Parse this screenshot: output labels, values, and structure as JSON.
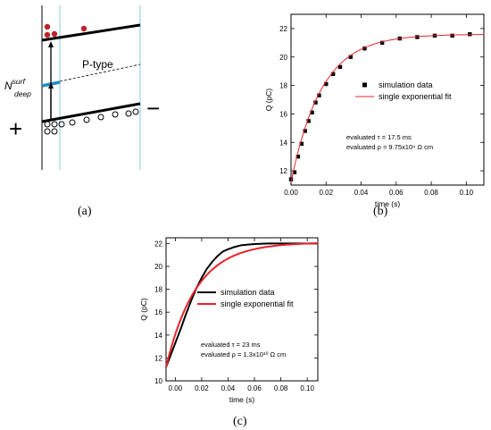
{
  "panels": {
    "a": {
      "label": "(a)"
    },
    "b": {
      "label": "(b)"
    },
    "c": {
      "label": "(c)"
    }
  },
  "schematic": {
    "region_label": "P-type",
    "nsurf_main": "N",
    "nsurf_sup": "surf",
    "nsurf_sub": "deep",
    "plus": "+",
    "minus": "−",
    "colors": {
      "red_dots": "#c0202a",
      "blue_line": "#1f8ec4",
      "cyan_lines": "#a8d8ec"
    }
  },
  "chart_data": [
    {
      "id": "b",
      "type": "scatter",
      "title": "",
      "xlabel": "time (s)",
      "ylabel": "Q (pC)",
      "xlim": [
        0,
        0.11
      ],
      "ylim": [
        11,
        23
      ],
      "xticks": [
        0.0,
        0.02,
        0.04,
        0.06,
        0.08,
        0.1
      ],
      "xtick_labels": [
        "0.00",
        "0.02",
        "0.04",
        "0.06",
        "0.08",
        "0.10"
      ],
      "yticks": [
        12,
        14,
        16,
        18,
        20,
        22
      ],
      "ytick_labels": [
        "12",
        "14",
        "16",
        "18",
        "20",
        "22"
      ],
      "grid": false,
      "legend": "right",
      "series": [
        {
          "name": "simulation data",
          "style": "marker",
          "color": "#000000",
          "x": [
            0.0,
            0.002,
            0.004,
            0.006,
            0.008,
            0.01,
            0.012,
            0.014,
            0.016,
            0.02,
            0.024,
            0.028,
            0.034,
            0.042,
            0.052,
            0.062,
            0.072,
            0.082,
            0.092,
            0.102
          ],
          "y": [
            11.4,
            11.9,
            13.0,
            13.9,
            14.8,
            15.5,
            16.1,
            16.8,
            17.3,
            18.1,
            18.8,
            19.3,
            20.0,
            20.6,
            21.0,
            21.3,
            21.4,
            21.5,
            21.5,
            21.6
          ]
        },
        {
          "name": "single exponential fit",
          "style": "line",
          "color": "#e8242b",
          "function": {
            "q0": 11.2,
            "qinf": 21.6,
            "tau": 0.0175,
            "x_end": 0.11,
            "samples": 120
          }
        }
      ],
      "annotations": [
        "evaluated τ = 17.5 ms",
        "evaluated ρ = 9.75x10⁹ Ω cm"
      ]
    },
    {
      "id": "c",
      "type": "line",
      "title": "",
      "xlabel": "time (s)",
      "ylabel": "Q (pC)",
      "xlim": [
        -0.007,
        0.108
      ],
      "ylim": [
        10,
        22.5
      ],
      "xticks": [
        0.0,
        0.02,
        0.04,
        0.06,
        0.08,
        0.1
      ],
      "xtick_labels": [
        "0.00",
        "0.02",
        "0.04",
        "0.06",
        "0.08",
        "0.10"
      ],
      "yticks": [
        10,
        12,
        14,
        16,
        18,
        20,
        22
      ],
      "ytick_labels": [
        "10",
        "12",
        "14",
        "16",
        "18",
        "20",
        "22"
      ],
      "grid": false,
      "legend": "right",
      "series": [
        {
          "name": "simulation data",
          "style": "line",
          "color": "#000000",
          "x": [
            -0.007,
            -0.004,
            0.0,
            0.004,
            0.008,
            0.012,
            0.016,
            0.02,
            0.024,
            0.028,
            0.032,
            0.036,
            0.04,
            0.045,
            0.05,
            0.055,
            0.06,
            0.07,
            0.08,
            0.09,
            0.1,
            0.108
          ],
          "y": [
            11.2,
            12.1,
            13.3,
            14.5,
            15.8,
            17.0,
            18.1,
            19.0,
            19.8,
            20.4,
            20.9,
            21.3,
            21.5,
            21.7,
            21.85,
            21.9,
            21.95,
            22.0,
            22.0,
            22.0,
            22.0,
            22.0
          ]
        },
        {
          "name": "single exponential fit",
          "style": "line",
          "color": "#e8242b",
          "function": {
            "q0": 11.2,
            "qinf": 22.1,
            "tau": 0.023,
            "x_start": -0.007,
            "x_end": 0.108,
            "samples": 120
          }
        }
      ],
      "annotations": [
        "evaluated τ = 23 ms",
        "evaluated ρ = 1.3x10¹⁰ Ω cm"
      ]
    }
  ]
}
